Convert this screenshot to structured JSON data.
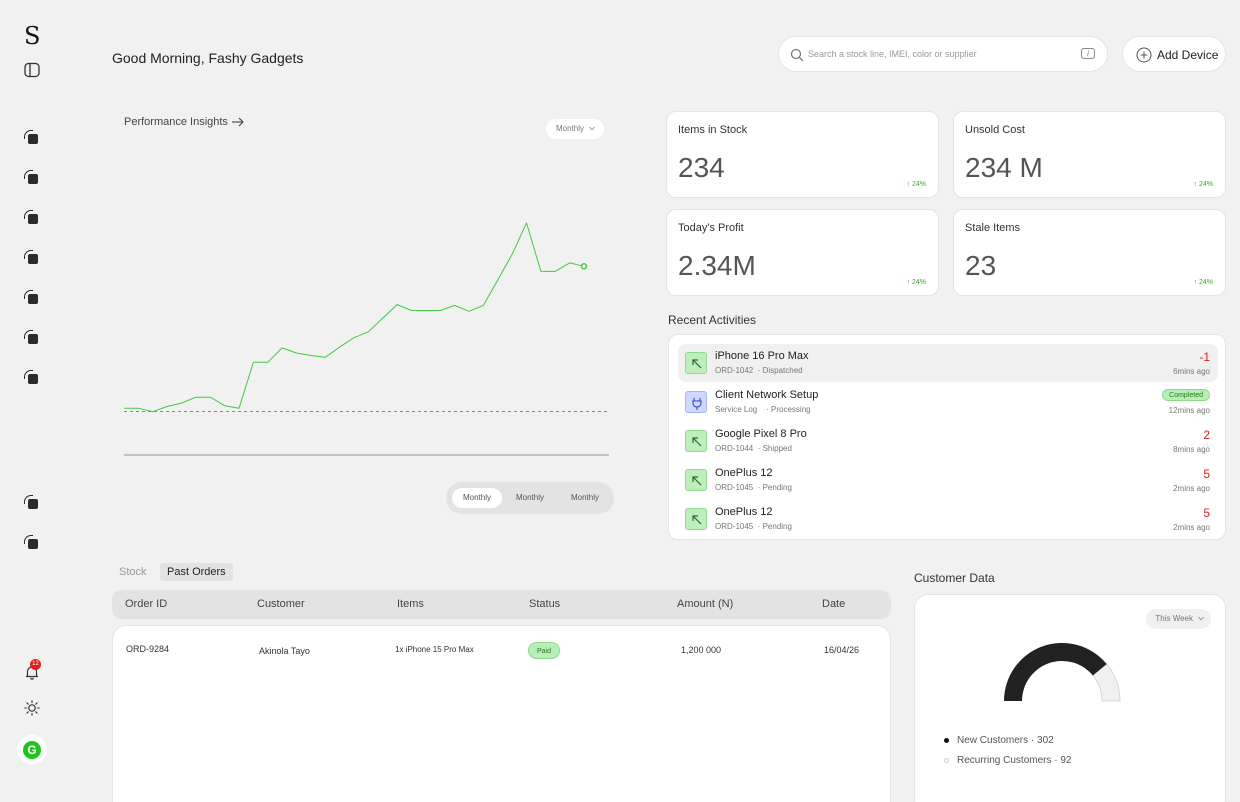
{
  "app": {
    "logo": "S"
  },
  "sidebar": {
    "nav_icons": [
      "nav-item-1-icon",
      "nav-item-2-icon",
      "nav-item-3-icon",
      "nav-item-4-icon",
      "nav-item-5-icon",
      "nav-item-6-icon",
      "nav-item-7-icon",
      "nav-item-8-icon",
      "nav-item-9-icon"
    ],
    "notifications_count": "12",
    "avatar_initial": "G"
  },
  "header": {
    "greeting": "Good Morning, Fashy Gadgets",
    "search_placeholder": "Search a stock line, IMEI, color or supplier",
    "add_device_label": "Add Device"
  },
  "performance": {
    "title": "Performance Insights",
    "period_dropdown": "Monthly",
    "segments": [
      "Monthly",
      "Monthly",
      "Monthly"
    ],
    "active_segment": 0
  },
  "chart_data": {
    "type": "line",
    "series": [
      {
        "values": [
          0.75,
          0.75,
          0.71,
          0.77,
          0.81,
          0.88,
          0.88,
          0.78,
          0.75,
          1.29,
          1.29,
          1.46,
          1.4,
          1.37,
          1.35,
          1.47,
          1.58,
          1.65,
          1.81,
          1.97,
          1.9,
          1.9,
          1.9,
          1.96,
          1.89,
          1.96,
          2.26,
          2.56,
          2.93,
          2.36,
          2.36,
          2.46,
          2.42
        ]
      }
    ],
    "baseline_dashed": 0.71,
    "ylim": [
      0.2,
      3.2
    ],
    "grid": false,
    "color": "#44c744"
  },
  "stats": [
    {
      "label": "Items in Stock",
      "value": "234",
      "delta": "↑ 24%"
    },
    {
      "label": "Unsold Cost",
      "value": "234 M",
      "delta": "↑ 24%"
    },
    {
      "label": "Today's Profit",
      "value": "2.34M",
      "delta": "↑ 24%"
    },
    {
      "label": "Stale Items",
      "value": "23",
      "delta": "↑ 24%"
    }
  ],
  "activities": {
    "title": "Recent Activities",
    "items": [
      {
        "name": "iPhone 16 Pro Max",
        "ref": "ORD-1042",
        "status": "· Dispatched",
        "qty": "-1",
        "time": "6mins ago",
        "icon": "arrow-up-left-icon"
      },
      {
        "name": "Client Network Setup",
        "ref": "Service Log",
        "status": "· Processing",
        "pill": "Completed",
        "time": "12mins ago",
        "icon": "plug-icon"
      },
      {
        "name": "Google Pixel 8 Pro",
        "ref": "ORD-1044",
        "status": "· Shipped",
        "qty": "2",
        "time": "8mins ago",
        "icon": "arrow-up-left-icon"
      },
      {
        "name": "OnePlus 12",
        "ref": "ORD-1045",
        "status": "· Pending",
        "qty": "5",
        "time": "2mins ago",
        "icon": "arrow-up-left-icon"
      },
      {
        "name": "OnePlus 12",
        "ref": "ORD-1045",
        "status": "· Pending",
        "qty": "5",
        "time": "2mins ago",
        "icon": "arrow-up-left-icon"
      }
    ]
  },
  "orders": {
    "tabs": [
      "Stock",
      "Past Orders"
    ],
    "active_tab": 1,
    "columns": [
      "Order ID",
      "Customer",
      "Items",
      "Status",
      "Amount (N)",
      "Date"
    ],
    "rows": [
      {
        "order_id": "ORD-9284",
        "customer": "Akinola Tayo",
        "items": "1x iPhone 15 Pro Max",
        "status": "Paid",
        "amount": "1,200 000",
        "date": "16/04/26"
      }
    ]
  },
  "customers": {
    "title": "Customer Data",
    "period": "This Week",
    "new_fraction": 0.78,
    "legend": [
      {
        "label": "New Customers",
        "value": "· 302",
        "color": "#111111"
      },
      {
        "label": "Recurring Customers",
        "value": "· 92",
        "color": "#dddddd"
      }
    ]
  }
}
